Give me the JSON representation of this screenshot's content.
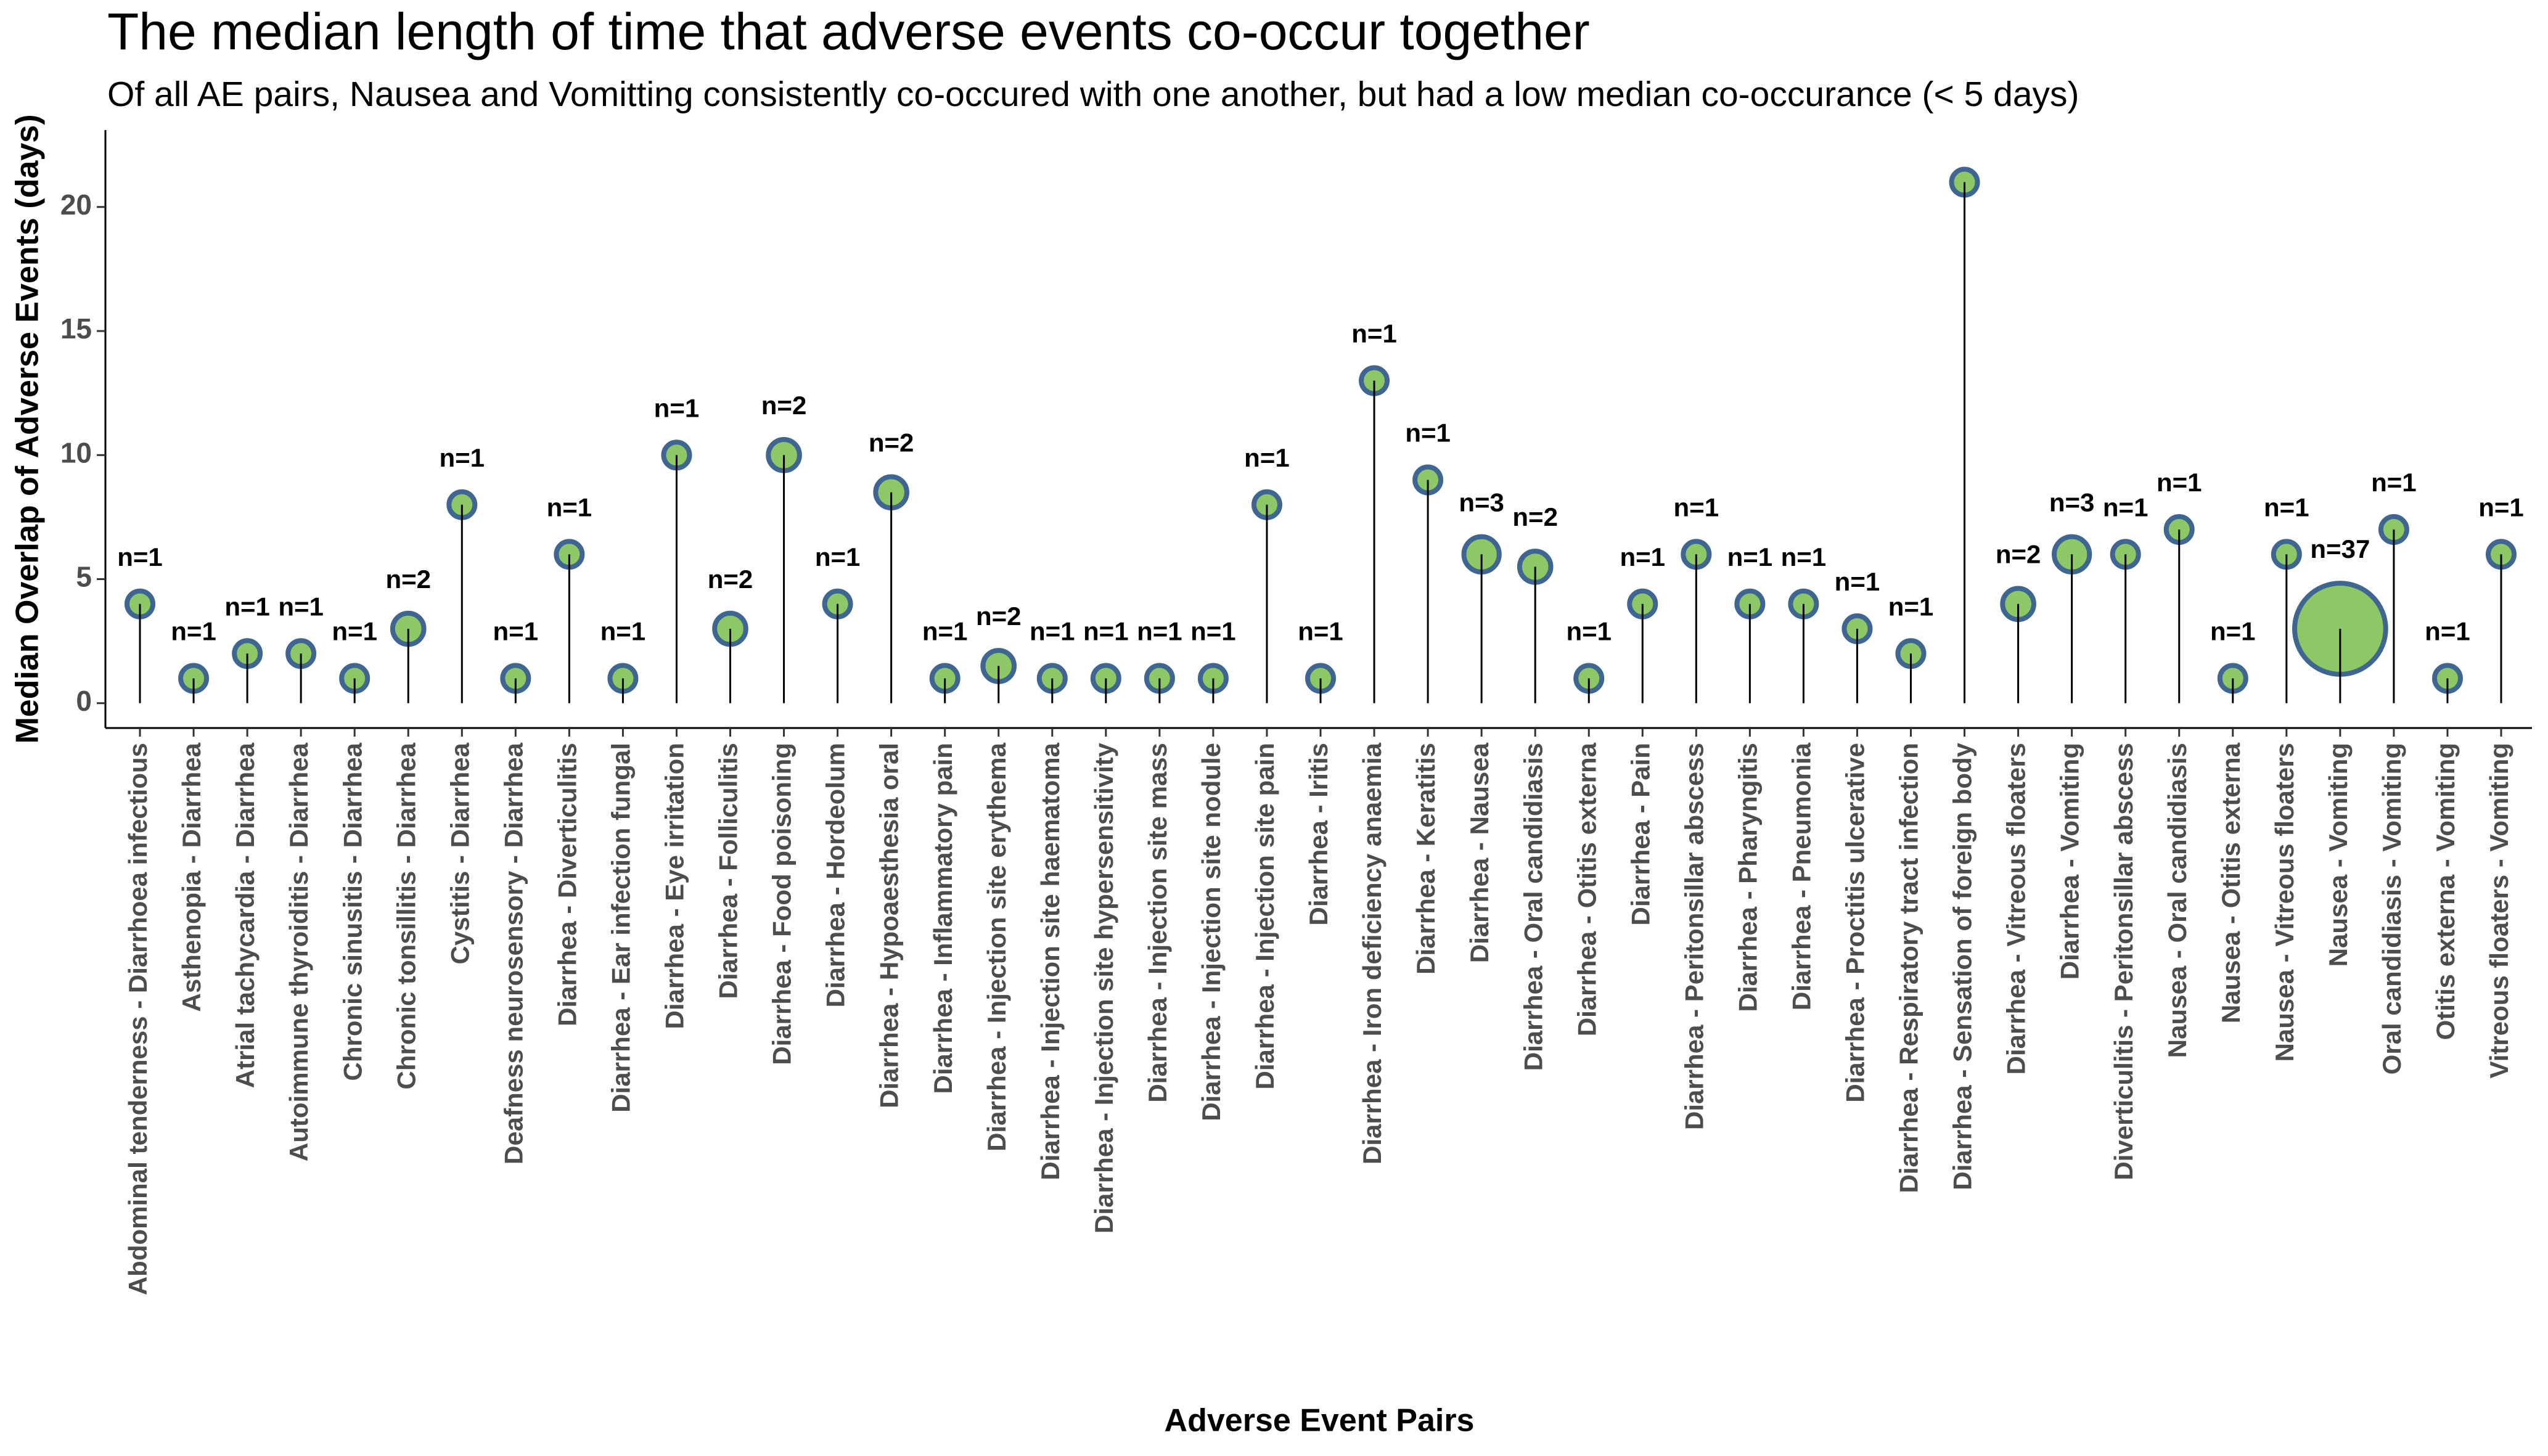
{
  "chart_data": {
    "type": "lollipop-bubble",
    "title": "The median length of time that adverse events co-occur together",
    "subtitle": "Of all AE pairs, Nausea and Vomitting consistently co-occured with one another, but had a low median co-occurance (< 5 days)",
    "x_label": "Adverse Event Pairs",
    "y_label": "Median Overlap of Adverse Events (days)",
    "categories": [
      "Abdominal tenderness - Diarrhoea infectious",
      "Asthenopia - Diarrhea",
      "Atrial tachycardia - Diarrhea",
      "Autoimmune thyroiditis - Diarrhea",
      "Chronic sinusitis - Diarrhea",
      "Chronic tonsillitis - Diarrhea",
      "Cystitis - Diarrhea",
      "Deafness neurosensory - Diarrhea",
      "Diarrhea - Diverticulitis",
      "Diarrhea - Ear infection fungal",
      "Diarrhea - Eye irritation",
      "Diarrhea - Folliculitis",
      "Diarrhea - Food poisoning",
      "Diarrhea - Hordeolum",
      "Diarrhea - Hypoaesthesia oral",
      "Diarrhea - Inflammatory pain",
      "Diarrhea - Injection site erythema",
      "Diarrhea - Injection site haematoma",
      "Diarrhea - Injection site hypersensitivity",
      "Diarrhea - Injection site mass",
      "Diarrhea - Injection site nodule",
      "Diarrhea - Injection site pain",
      "Diarrhea - Iritis",
      "Diarrhea - Iron deficiency anaemia",
      "Diarrhea - Keratitis",
      "Diarrhea - Nausea",
      "Diarrhea - Oral candidiasis",
      "Diarrhea - Otitis externa",
      "Diarrhea - Pain",
      "Diarrhea - Peritonsillar abscess",
      "Diarrhea - Pharyngitis",
      "Diarrhea - Pneumonia",
      "Diarrhea - Proctitis ulcerative",
      "Diarrhea - Respiratory tract infection",
      "Diarrhea - Sensation of foreign body",
      "Diarrhea - Vitreous floaters",
      "Diarrhea - Vomiting",
      "Diverticulitis - Peritonsillar abscess",
      "Nausea - Oral candidiasis",
      "Nausea - Otitis externa",
      "Nausea - Vitreous floaters",
      "Nausea - Vomiting",
      "Oral candidiasis - Vomiting",
      "Otitis externa - Vomiting",
      "Vitreous floaters - Vomiting"
    ],
    "values": [
      4,
      1,
      2,
      2,
      1,
      3,
      8,
      1,
      6,
      1,
      10,
      3,
      10,
      4,
      8.5,
      1,
      1.5,
      1,
      1,
      1,
      1,
      8,
      1,
      13,
      9,
      6,
      5.5,
      1,
      4,
      6,
      4,
      4,
      3,
      2,
      21,
      4,
      6,
      6,
      7,
      1,
      6,
      3,
      7,
      1,
      6
    ],
    "sizes": [
      1,
      1,
      1,
      1,
      1,
      2,
      1,
      1,
      1,
      1,
      1,
      2,
      2,
      1,
      2,
      1,
      2,
      1,
      1,
      1,
      1,
      1,
      1,
      1,
      1,
      3,
      2,
      1,
      1,
      1,
      1,
      1,
      1,
      1,
      1,
      2,
      3,
      1,
      1,
      1,
      1,
      37,
      1,
      1,
      1
    ],
    "size_labels": [
      "n=1",
      "n=1",
      "n=1",
      "n=1",
      "n=1",
      "n=2",
      "n=1",
      "n=1",
      "n=1",
      "n=1",
      "n=1",
      "n=2",
      "n=2",
      "n=1",
      "n=2",
      "n=1",
      "n=2",
      "n=1",
      "n=1",
      "n=1",
      "n=1",
      "n=1",
      "n=1",
      "n=1",
      "n=1",
      "n=3",
      "n=2",
      "n=1",
      "n=1",
      "n=1",
      "n=1",
      "n=1",
      "n=1",
      "n=1",
      null,
      "n=2",
      "n=3",
      "n=1",
      "n=1",
      "n=1",
      "n=1",
      "n=37",
      "n=1",
      "n=1",
      "n=1"
    ],
    "color": "#8cc866",
    "edge_color": "#3e6690",
    "ylim": [
      -1,
      23.1
    ],
    "yticks": [
      0,
      5,
      10,
      15,
      20
    ],
    "grid": false
  }
}
